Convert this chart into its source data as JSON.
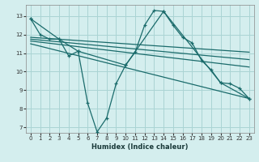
{
  "xlabel": "Humidex (Indice chaleur)",
  "background_color": "#d4eeee",
  "grid_color": "#aad4d4",
  "line_color": "#1a6b6b",
  "xlim": [
    -0.5,
    23.5
  ],
  "ylim": [
    6.7,
    13.6
  ],
  "xticks": [
    0,
    1,
    2,
    3,
    4,
    5,
    6,
    7,
    8,
    9,
    10,
    11,
    12,
    13,
    14,
    15,
    16,
    17,
    18,
    19,
    20,
    21,
    22,
    23
  ],
  "yticks": [
    7,
    8,
    9,
    10,
    11,
    12,
    13
  ],
  "lines": [
    {
      "x": [
        0,
        1,
        2,
        3,
        4,
        5,
        6,
        7,
        8,
        9,
        10,
        11,
        12,
        13,
        14,
        15,
        16,
        17,
        18,
        19,
        20,
        21,
        22,
        23
      ],
      "y": [
        12.85,
        12.0,
        11.75,
        11.75,
        10.85,
        11.1,
        8.3,
        6.75,
        7.5,
        9.35,
        10.35,
        11.05,
        12.5,
        13.3,
        13.25,
        12.5,
        11.85,
        11.55,
        10.6,
        10.1,
        9.4,
        9.35,
        9.1,
        8.55
      ],
      "markers": true
    },
    {
      "x": [
        0,
        3,
        5,
        10,
        14,
        20,
        23
      ],
      "y": [
        12.85,
        11.75,
        11.1,
        10.35,
        13.25,
        9.4,
        8.55
      ],
      "markers": true
    },
    {
      "x": [
        0,
        23
      ],
      "y": [
        11.85,
        11.05
      ],
      "markers": false
    },
    {
      "x": [
        0,
        23
      ],
      "y": [
        11.75,
        10.65
      ],
      "markers": false
    },
    {
      "x": [
        0,
        23
      ],
      "y": [
        11.65,
        10.25
      ],
      "markers": false
    },
    {
      "x": [
        0,
        23
      ],
      "y": [
        11.5,
        8.55
      ],
      "markers": false
    }
  ]
}
